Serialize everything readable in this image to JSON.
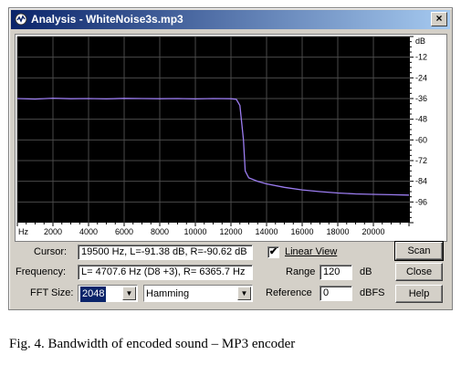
{
  "window": {
    "title": "Analysis - WhiteNoise3s.mp3",
    "close_glyph": "×"
  },
  "chart_data": {
    "type": "line",
    "x_tick_labels": [
      "Hz",
      "2000",
      "4000",
      "6000",
      "8000",
      "10000",
      "12000",
      "14000",
      "16000",
      "18000",
      "20000"
    ],
    "y_tick_labels": [
      "dB",
      "-12",
      "-24",
      "-36",
      "-48",
      "-60",
      "-72",
      "-84",
      "-96"
    ],
    "x_range": [
      0,
      22050
    ],
    "y_range": [
      -108,
      0
    ],
    "grid": true,
    "colors": {
      "background": "#000000",
      "grid": "#4a4a4a",
      "line": "#9b7cf0"
    },
    "series": [
      {
        "x": [
          0,
          1000,
          2000,
          3000,
          4000,
          5000,
          6000,
          7000,
          8000,
          9000,
          10000,
          11000,
          12000,
          12300,
          12500,
          12700,
          12800,
          13000,
          13500,
          14000,
          15000,
          16000,
          17000,
          18000,
          19000,
          20000,
          21000,
          22000
        ],
        "y": [
          -36.0,
          -36.3,
          -35.8,
          -36.1,
          -36.0,
          -36.2,
          -35.9,
          -36.0,
          -36.1,
          -36.0,
          -36.2,
          -36.0,
          -36.1,
          -36.5,
          -40,
          -60,
          -78,
          -82,
          -84,
          -85.5,
          -87.5,
          -89,
          -90,
          -90.8,
          -91.3,
          -91.6,
          -91.8,
          -92
        ]
      }
    ]
  },
  "cursor": {
    "label": "Cursor:",
    "value": "19500 Hz, L=-91.38 dB, R=-90.62 dB"
  },
  "frequency": {
    "label": "Frequency:",
    "value": "L= 4707.6 Hz (D8 +3), R= 6365.7 Hz"
  },
  "fft": {
    "label": "FFT Size:",
    "value": "2048",
    "window_value": "Hamming"
  },
  "linear_view": {
    "label": "Linear View",
    "checked": "✔"
  },
  "range": {
    "label": "Range",
    "value": "120",
    "unit": "dB"
  },
  "reference": {
    "label": "Reference",
    "value": "0",
    "unit": "dBFS"
  },
  "buttons": {
    "scan": "Scan",
    "close": "Close",
    "help": "Help"
  },
  "caption": "Fig. 4. Bandwidth of encoded sound – MP3 encoder"
}
